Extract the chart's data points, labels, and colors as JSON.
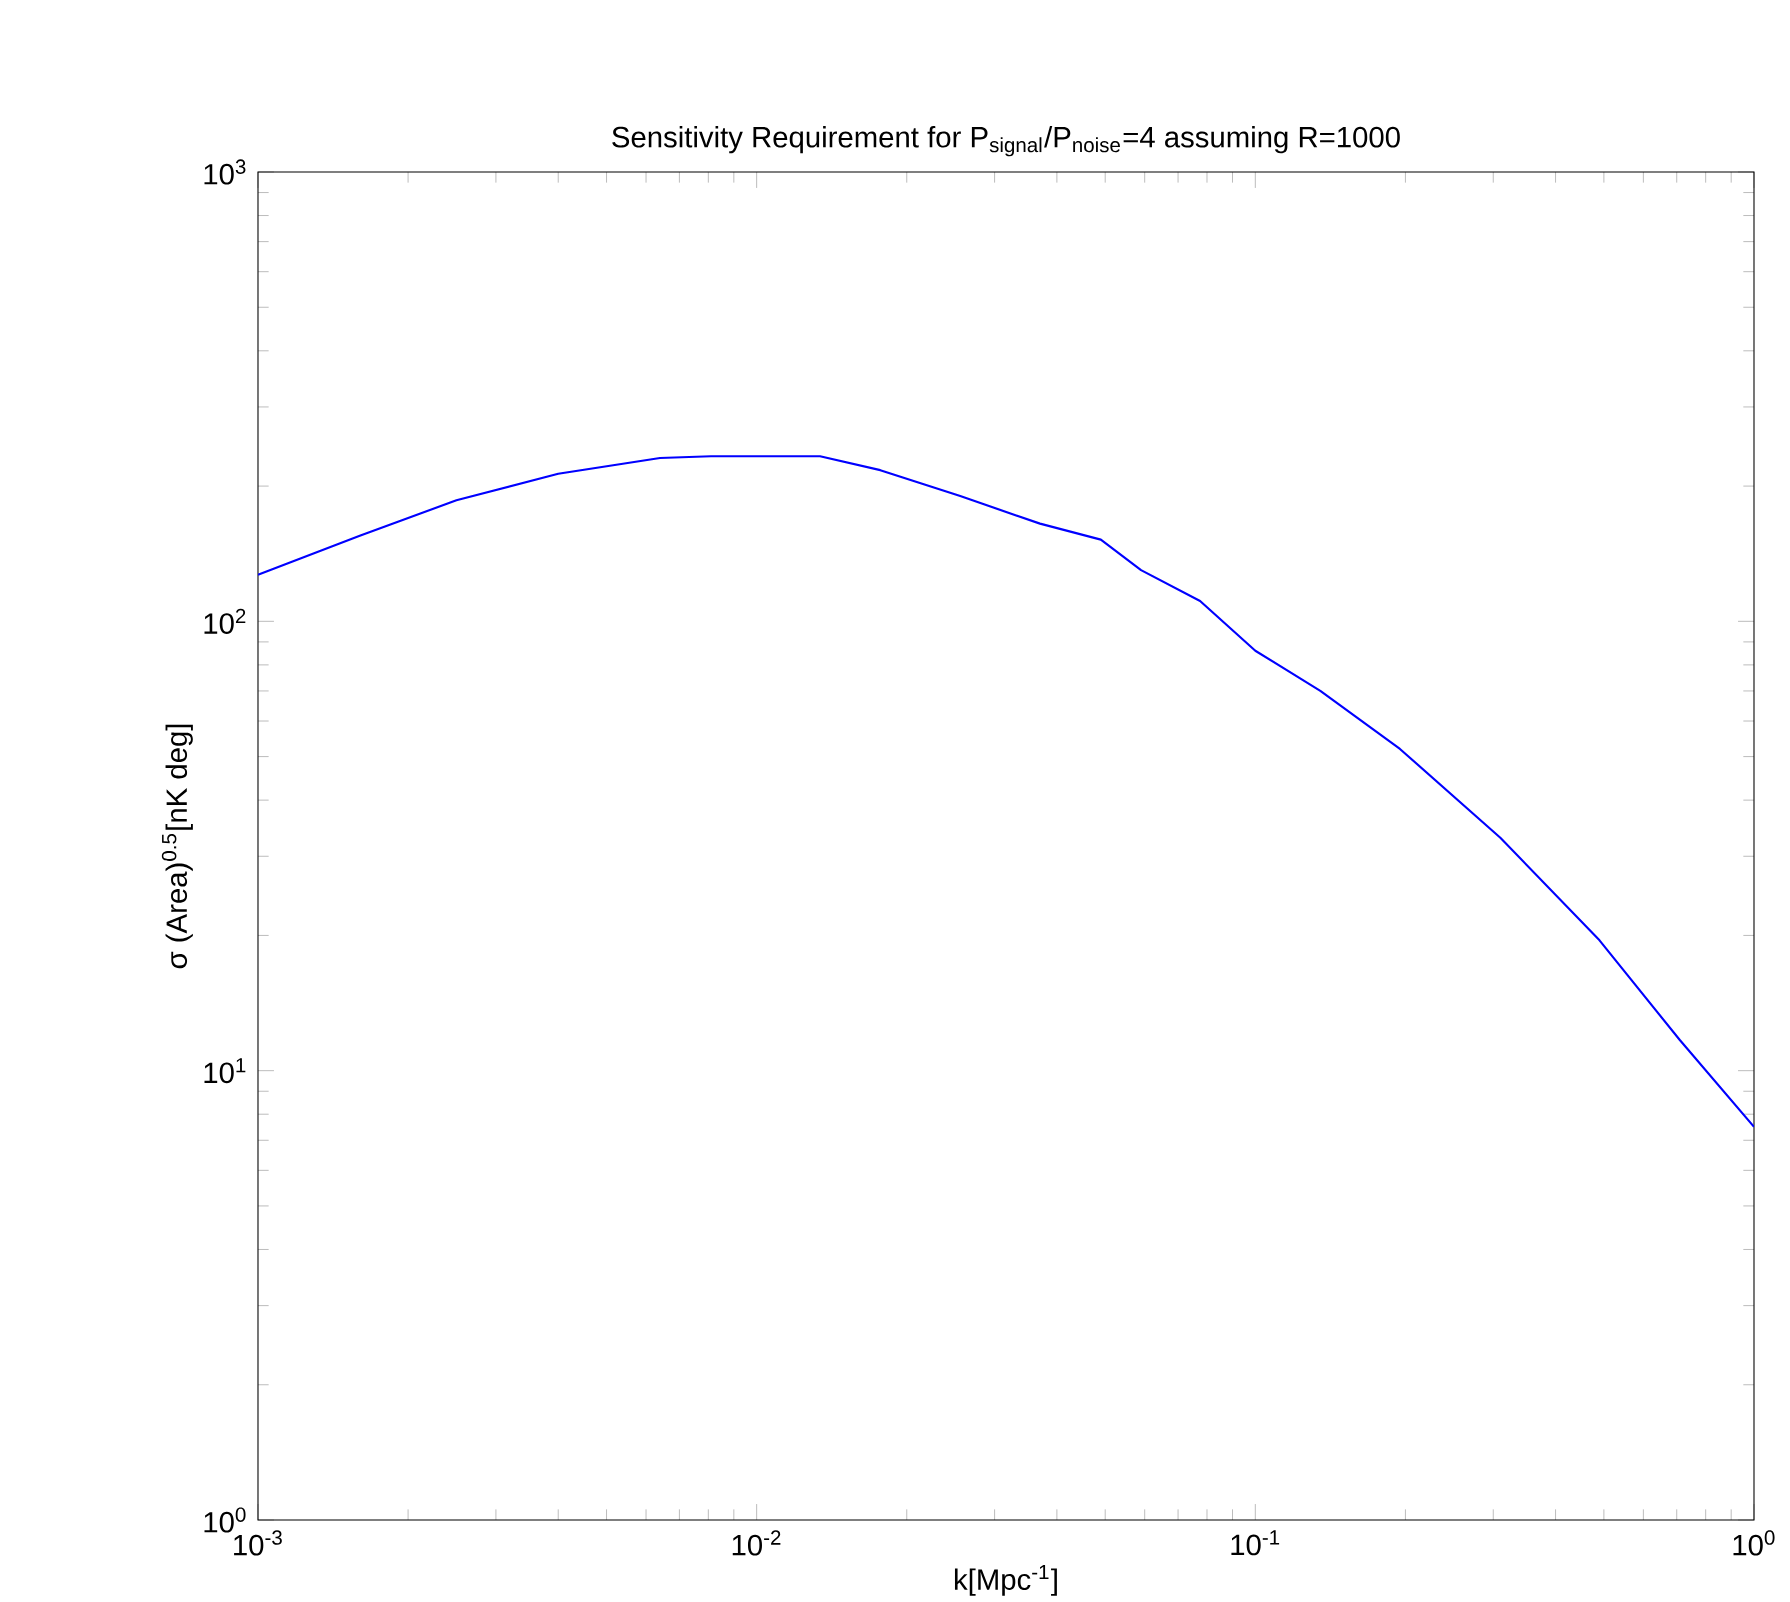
{
  "chart_data": {
    "type": "line",
    "title": "Sensitivity Requirement for P$_{signal}$/P$_{noise}$=4 assuming R=1000",
    "xlabel": "k[Mpc$^{-1}$]",
    "ylabel": "σ (Area)$^{0.5}$[nK deg]",
    "log": "xy",
    "xlim": [
      0.001,
      1
    ],
    "ylim": [
      1,
      1000
    ],
    "xticks": [
      {
        "value": 0.001,
        "label": "10$^{-3}$"
      },
      {
        "value": 0.01,
        "label": "10$^{-2}$"
      },
      {
        "value": 0.1,
        "label": "10$^{-1}$"
      },
      {
        "value": 1,
        "label": "10$^{0}$"
      }
    ],
    "yticks": [
      {
        "value": 1,
        "label": "10$^{0}$"
      },
      {
        "value": 10,
        "label": "10$^{1}$"
      },
      {
        "value": 100,
        "label": "10$^{2}$"
      },
      {
        "value": 1000,
        "label": "10$^{3}$"
      }
    ],
    "series": [
      {
        "color": "#0000ff",
        "x": [
          0.001,
          0.0016,
          0.0025,
          0.004,
          0.0064,
          0.0081,
          0.0134,
          0.0177,
          0.0256,
          0.037,
          0.049,
          0.059,
          0.0775,
          0.1,
          0.135,
          0.195,
          0.31,
          0.49,
          0.71,
          1.0
        ],
        "values": [
          127,
          155,
          186,
          213,
          231,
          233,
          233,
          217,
          190,
          165,
          152,
          130,
          111,
          86,
          70,
          52,
          33,
          19.5,
          11.7,
          7.5
        ]
      }
    ]
  }
}
